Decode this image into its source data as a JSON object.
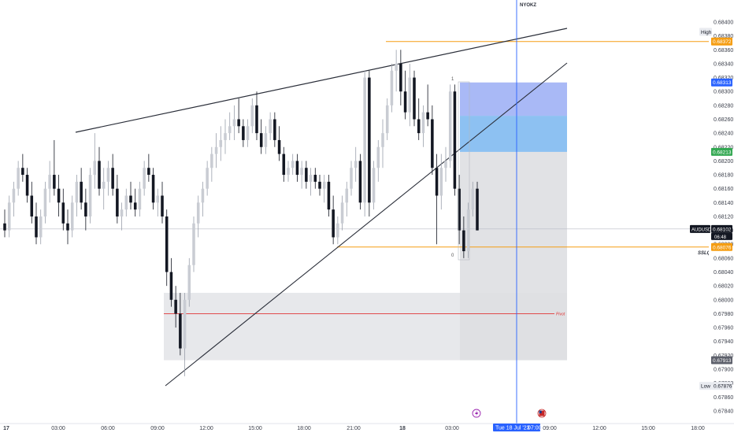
{
  "chart": {
    "symbol": "AUDUSD",
    "countdown": "06:48",
    "session_label": "NYOKZ",
    "colors": {
      "bull": "#c9ccd3",
      "bear": "#131722",
      "accent_blue": "#2962ff",
      "orange": "#f59d12",
      "green": "#33a852",
      "pivot_red": "#e03535"
    }
  },
  "chart_data": {
    "type": "candlestick",
    "y_ticks": [
      "0.68400",
      "0.68380",
      "0.68360",
      "0.68340",
      "0.68320",
      "0.68300",
      "0.68280",
      "0.68260",
      "0.68240",
      "0.68220",
      "0.68200",
      "0.68180",
      "0.68160",
      "0.68140",
      "0.68120",
      "0.68100",
      "0.68080",
      "0.68060",
      "0.68040",
      "0.68020",
      "0.68000",
      "0.67980",
      "0.67960",
      "0.67940",
      "0.67920",
      "0.67900",
      "0.67880",
      "0.67860",
      "0.67840"
    ],
    "x_ticks": [
      "17",
      "03:00",
      "06:00",
      "09:00",
      "12:00",
      "15:00",
      "18:00",
      "21:00",
      "18",
      "03:00",
      "06:00",
      "09:00",
      "12:00",
      "15:00",
      "18:00"
    ],
    "cursor_date": "Tue 18 Jul '23",
    "cursor_time": "07:00",
    "price_badges": [
      {
        "name": "high-label",
        "text": "High",
        "price": 0.68386,
        "style": "light"
      },
      {
        "name": "orange-level-badge",
        "text": "0.68372",
        "price": 0.68372,
        "style": "orange"
      },
      {
        "name": "target-badge",
        "text": "0.68313",
        "price": 0.68313,
        "style": "blue"
      },
      {
        "name": "entry-badge",
        "text": "0.68213",
        "price": 0.68213,
        "style": "green"
      },
      {
        "name": "current-price-badge",
        "text": "0.68102",
        "price": 0.68102,
        "style": "dark"
      },
      {
        "name": "sslq-level-badge",
        "text": "0.68076",
        "price": 0.68076,
        "style": "orange"
      },
      {
        "name": "zone-low-badge",
        "text": "0.67913",
        "price": 0.67913,
        "style": "gray"
      },
      {
        "name": "low-label",
        "text": "Low",
        "price": 0.67876,
        "style": "light"
      },
      {
        "name": "low-badge",
        "text": "0.67876",
        "price": 0.67876,
        "style": "light"
      }
    ],
    "level_labels": [
      {
        "name": "sslq-label",
        "text": "SSLQ"
      },
      {
        "name": "pivot-label",
        "text": "Pivot"
      }
    ],
    "candles": [
      [
        0.6811,
        0.6813,
        0.6809,
        0.681
      ],
      [
        0.681,
        0.6815,
        0.6809,
        0.6814
      ],
      [
        0.6814,
        0.6817,
        0.6812,
        0.6816
      ],
      [
        0.6816,
        0.682,
        0.6815,
        0.6819
      ],
      [
        0.6819,
        0.6821,
        0.6817,
        0.6818
      ],
      [
        0.6818,
        0.6819,
        0.6814,
        0.6815
      ],
      [
        0.6815,
        0.6817,
        0.6811,
        0.6812
      ],
      [
        0.6812,
        0.6814,
        0.6808,
        0.6809
      ],
      [
        0.6809,
        0.6813,
        0.6808,
        0.6812
      ],
      [
        0.6812,
        0.6817,
        0.6811,
        0.6816
      ],
      [
        0.6816,
        0.682,
        0.6814,
        0.6818
      ],
      [
        0.6818,
        0.6823,
        0.6815,
        0.6816
      ],
      [
        0.6816,
        0.6818,
        0.6812,
        0.6814
      ],
      [
        0.6814,
        0.6816,
        0.681,
        0.6811
      ],
      [
        0.6811,
        0.6813,
        0.6808,
        0.681
      ],
      [
        0.681,
        0.6815,
        0.6809,
        0.6814
      ],
      [
        0.6814,
        0.6818,
        0.6812,
        0.6817
      ],
      [
        0.6817,
        0.6819,
        0.6813,
        0.6814
      ],
      [
        0.6814,
        0.6816,
        0.681,
        0.6812
      ],
      [
        0.6812,
        0.6819,
        0.6811,
        0.6818
      ],
      [
        0.6818,
        0.6824,
        0.6816,
        0.682
      ],
      [
        0.682,
        0.6822,
        0.6815,
        0.6816
      ],
      [
        0.6816,
        0.6819,
        0.6813,
        0.6817
      ],
      [
        0.6817,
        0.682,
        0.6815,
        0.6819
      ],
      [
        0.6819,
        0.6821,
        0.6815,
        0.6816
      ],
      [
        0.6816,
        0.6818,
        0.6811,
        0.6812
      ],
      [
        0.6812,
        0.6814,
        0.681,
        0.6813
      ],
      [
        0.6813,
        0.6816,
        0.6812,
        0.6815
      ],
      [
        0.6815,
        0.6817,
        0.6813,
        0.6814
      ],
      [
        0.6814,
        0.6816,
        0.6812,
        0.6813
      ],
      [
        0.6813,
        0.6817,
        0.6812,
        0.6816
      ],
      [
        0.6816,
        0.682,
        0.6815,
        0.6819
      ],
      [
        0.6819,
        0.6821,
        0.6817,
        0.6818
      ],
      [
        0.6818,
        0.6819,
        0.6813,
        0.6814
      ],
      [
        0.6814,
        0.6816,
        0.6812,
        0.6815
      ],
      [
        0.6815,
        0.6817,
        0.6811,
        0.6812
      ],
      [
        0.6812,
        0.6813,
        0.6802,
        0.6804
      ],
      [
        0.6804,
        0.6806,
        0.6799,
        0.68
      ],
      [
        0.68,
        0.6802,
        0.6796,
        0.6798
      ],
      [
        0.6798,
        0.6801,
        0.6792,
        0.6793
      ],
      [
        0.6793,
        0.6801,
        0.6789,
        0.68
      ],
      [
        0.68,
        0.6806,
        0.6799,
        0.6805
      ],
      [
        0.6805,
        0.6812,
        0.6804,
        0.6811
      ],
      [
        0.6811,
        0.6815,
        0.6809,
        0.6814
      ],
      [
        0.6814,
        0.6817,
        0.6812,
        0.6816
      ],
      [
        0.6816,
        0.682,
        0.6815,
        0.6819
      ],
      [
        0.6819,
        0.6822,
        0.6817,
        0.6821
      ],
      [
        0.6821,
        0.6824,
        0.6819,
        0.6822
      ],
      [
        0.6822,
        0.6825,
        0.682,
        0.6823
      ],
      [
        0.6823,
        0.6826,
        0.6821,
        0.6824
      ],
      [
        0.6824,
        0.6827,
        0.6823,
        0.6825
      ],
      [
        0.6825,
        0.6828,
        0.6823,
        0.6826
      ],
      [
        0.6826,
        0.6829,
        0.6824,
        0.6825
      ],
      [
        0.6825,
        0.6826,
        0.6822,
        0.6823
      ],
      [
        0.6823,
        0.6826,
        0.6822,
        0.6825
      ],
      [
        0.6825,
        0.6829,
        0.6824,
        0.6828
      ],
      [
        0.6828,
        0.683,
        0.6823,
        0.6824
      ],
      [
        0.6824,
        0.6826,
        0.6821,
        0.6822
      ],
      [
        0.6822,
        0.6825,
        0.6821,
        0.6824
      ],
      [
        0.6824,
        0.6827,
        0.6823,
        0.6826
      ],
      [
        0.6826,
        0.6827,
        0.6822,
        0.6823
      ],
      [
        0.6823,
        0.6825,
        0.682,
        0.6821
      ],
      [
        0.6821,
        0.6822,
        0.6817,
        0.6818
      ],
      [
        0.6818,
        0.682,
        0.6817,
        0.6819
      ],
      [
        0.6819,
        0.6821,
        0.6818,
        0.682
      ],
      [
        0.682,
        0.6821,
        0.6817,
        0.6818
      ],
      [
        0.6818,
        0.682,
        0.6816,
        0.6819
      ],
      [
        0.6819,
        0.682,
        0.6816,
        0.6817
      ],
      [
        0.6817,
        0.6819,
        0.6815,
        0.6818
      ],
      [
        0.6818,
        0.6819,
        0.6816,
        0.6817
      ],
      [
        0.6817,
        0.6818,
        0.6815,
        0.6816
      ],
      [
        0.6816,
        0.6818,
        0.6814,
        0.6817
      ],
      [
        0.6817,
        0.6818,
        0.6812,
        0.6813
      ],
      [
        0.6813,
        0.6815,
        0.6808,
        0.6809
      ],
      [
        0.6809,
        0.6812,
        0.6808,
        0.6811
      ],
      [
        0.6811,
        0.6815,
        0.681,
        0.6814
      ],
      [
        0.6814,
        0.6817,
        0.6812,
        0.6816
      ],
      [
        0.6816,
        0.682,
        0.6815,
        0.6819
      ],
      [
        0.6819,
        0.6822,
        0.6817,
        0.682
      ],
      [
        0.682,
        0.6821,
        0.6813,
        0.6814
      ],
      [
        0.6814,
        0.6833,
        0.6812,
        0.6832
      ],
      [
        0.6832,
        0.6833,
        0.6812,
        0.6814
      ],
      [
        0.6814,
        0.682,
        0.6813,
        0.6819
      ],
      [
        0.6819,
        0.6823,
        0.6817,
        0.6822
      ],
      [
        0.6822,
        0.6826,
        0.6819,
        0.6824
      ],
      [
        0.6824,
        0.6829,
        0.6823,
        0.6828
      ],
      [
        0.6828,
        0.6834,
        0.6827,
        0.6833
      ],
      [
        0.6833,
        0.6836,
        0.683,
        0.6834
      ],
      [
        0.6834,
        0.6836,
        0.6828,
        0.683
      ],
      [
        0.683,
        0.6833,
        0.6826,
        0.6827
      ],
      [
        0.6827,
        0.6834,
        0.6825,
        0.6832
      ],
      [
        0.6832,
        0.6833,
        0.6825,
        0.6826
      ],
      [
        0.6826,
        0.6829,
        0.6823,
        0.6824
      ],
      [
        0.6824,
        0.6828,
        0.6822,
        0.6827
      ],
      [
        0.6827,
        0.6831,
        0.6825,
        0.6826
      ],
      [
        0.6826,
        0.6828,
        0.6818,
        0.6819
      ],
      [
        0.6819,
        0.6821,
        0.6808,
        0.6815
      ],
      [
        0.6815,
        0.6821,
        0.6813,
        0.6819
      ],
      [
        0.6819,
        0.6822,
        0.6817,
        0.682
      ],
      [
        0.682,
        0.6831,
        0.6819,
        0.683
      ],
      [
        0.683,
        0.6831,
        0.6815,
        0.6816
      ],
      [
        0.6816,
        0.6818,
        0.6808,
        0.681
      ],
      [
        0.681,
        0.6812,
        0.6806,
        0.6807
      ],
      [
        0.6807,
        0.6814,
        0.6806,
        0.6813
      ],
      [
        0.6813,
        0.6817,
        0.6812,
        0.6816
      ],
      [
        0.6816,
        0.6817,
        0.681,
        0.681
      ]
    ],
    "annotations": {
      "upper_trendline": "resistance",
      "lower_trendline": "support",
      "pivot_level": 0.6798,
      "demand_zone": [
        0.67913,
        0.6801
      ]
    }
  }
}
